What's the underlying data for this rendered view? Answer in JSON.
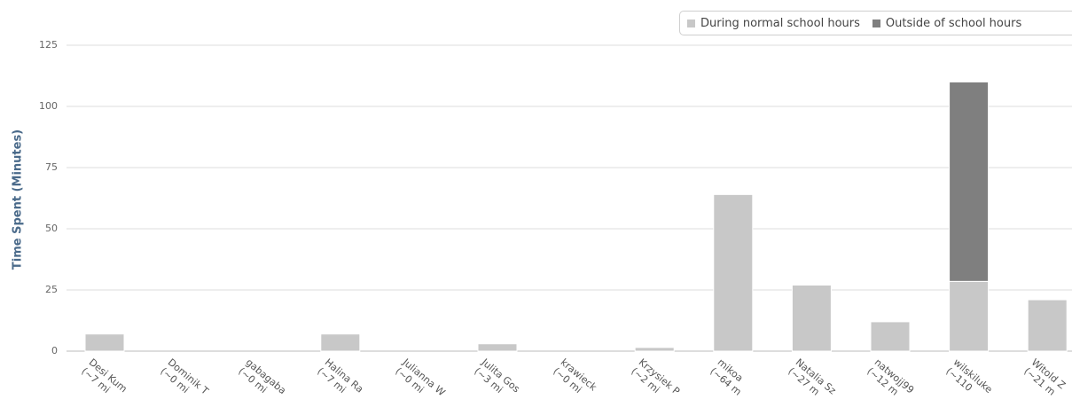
{
  "chart_data": {
    "type": "bar",
    "stacked": true,
    "ylabel": "Time Spent (Minutes)",
    "ylim": [
      0,
      125
    ],
    "yticks": [
      "0",
      "25",
      "50",
      "75",
      "100",
      "125"
    ],
    "legend_placement": "top-right",
    "categories": [
      "Desi Kum… (~7 m…",
      "Dominik … (~0 m…",
      "gabagaba… (~0 m…",
      "Halina Ra… (~7 m…",
      "Julianna … (~0 m…",
      "Julita Gos… (~3 m…",
      "krawieck (~0 m…",
      "Krzysiek P… (~2 m…",
      "mikoa (~64 m…",
      "Natalia Sz… (~27 m…",
      "natwojj99 (~12 m…",
      "wilskiluke (~110…",
      "Witold Z… (~21 m…"
    ],
    "category_lines": [
      [
        "Desi Kum",
        "(~7 mi"
      ],
      [
        "Dominik T",
        "(~0 mi"
      ],
      [
        "gabagaba",
        "(~0 mi"
      ],
      [
        "Halina Ra",
        "(~7 mi"
      ],
      [
        "Julianna W",
        "(~0 mi"
      ],
      [
        "Julita Gos",
        "(~3 mi"
      ],
      [
        "krawieck",
        "(~0 mi"
      ],
      [
        "Krzysiek P",
        "(~2 mi"
      ],
      [
        "mikoa",
        "(~64 m"
      ],
      [
        "Natalia Sz",
        "(~27 m"
      ],
      [
        "natwojj99",
        "(~12 m"
      ],
      [
        "wilskiluke",
        "(~110"
      ],
      [
        "Witold Z",
        "(~21 m"
      ]
    ],
    "series": [
      {
        "name": "During normal school hours",
        "color": "#c8c8c8",
        "values": [
          7,
          0,
          0,
          7,
          0,
          3,
          0,
          1.5,
          64,
          27,
          12,
          28.5,
          21
        ]
      },
      {
        "name": "Outside of school hours",
        "color": "#7f7f7f",
        "values": [
          0,
          0,
          0,
          0,
          0,
          0,
          0,
          0,
          0,
          0,
          0,
          81.5,
          0
        ]
      }
    ],
    "grid": true
  }
}
